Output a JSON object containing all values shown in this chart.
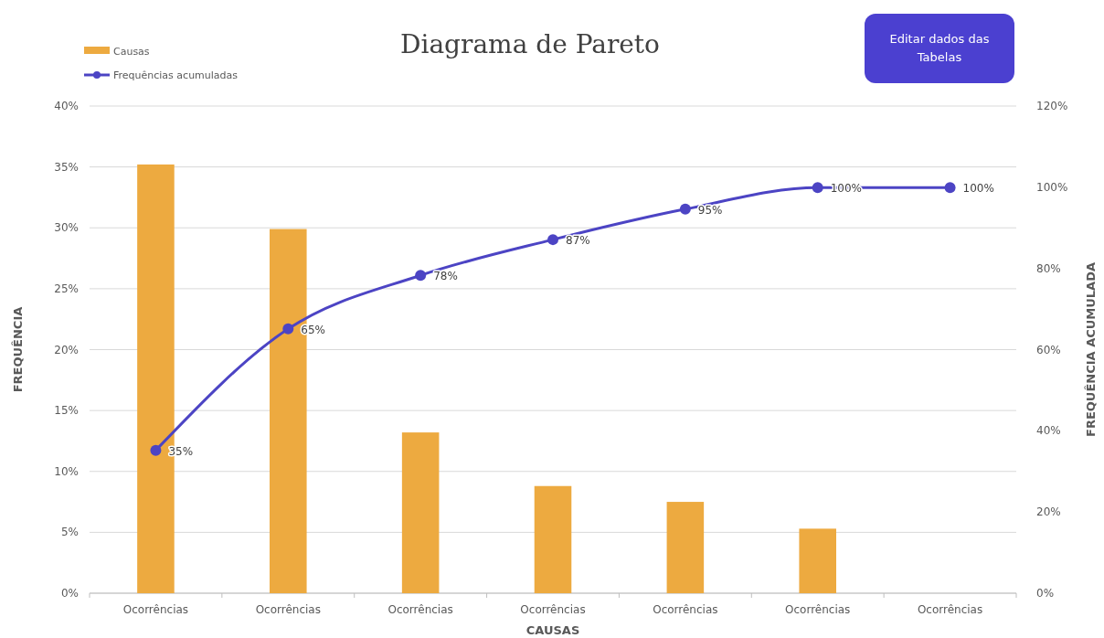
{
  "chart_data": {
    "type": "bar",
    "title": "Diagrama de Pareto",
    "xlabel": "CAUSAS",
    "ylabel": "FREQUÊNCIA",
    "y2label": "FREQUÊNCIA ACUMULADA",
    "annotations": [
      "Editar dados das Tabelas"
    ],
    "categories": [
      "Ocorrências",
      "Ocorrências",
      "Ocorrências",
      "Ocorrências",
      "Ocorrências",
      "Ocorrências",
      "Ocorrências"
    ],
    "series": [
      {
        "name": "Causas",
        "color": "#edaa40",
        "values": [
          35.2,
          29.9,
          13.2,
          8.8,
          7.5,
          5.3,
          0
        ]
      },
      {
        "name": "Frequências acumuladas",
        "type": "line",
        "axis": "y2",
        "color": "#4c44c4",
        "marker": "circle",
        "values": [
          35.2,
          65.1,
          78.3,
          87.1,
          94.6,
          99.9,
          99.9
        ],
        "value_labels": [
          "35%",
          "65%",
          "78%",
          "87%",
          "95%",
          "100%",
          "100%"
        ]
      }
    ],
    "ylim": [
      0,
      40
    ],
    "yticks": [
      {
        "value": 0,
        "label": "0%"
      },
      {
        "value": 5,
        "label": "5%"
      },
      {
        "value": 10,
        "label": "10%"
      },
      {
        "value": 15,
        "label": "15%"
      },
      {
        "value": 20,
        "label": "20%"
      },
      {
        "value": 25,
        "label": "25%"
      },
      {
        "value": 30,
        "label": "30%"
      },
      {
        "value": 35,
        "label": "35%"
      },
      {
        "value": 40,
        "label": "40%"
      }
    ],
    "y2lim": [
      0,
      120
    ],
    "y2ticks": [
      {
        "value": 0,
        "label": "0%"
      },
      {
        "value": 20,
        "label": "20%"
      },
      {
        "value": 40,
        "label": "40%"
      },
      {
        "value": 60,
        "label": "60%"
      },
      {
        "value": 80,
        "label": "80%"
      },
      {
        "value": 100,
        "label": "100%"
      },
      {
        "value": 120,
        "label": "120%"
      }
    ],
    "grid": "y",
    "legend": "top left"
  }
}
